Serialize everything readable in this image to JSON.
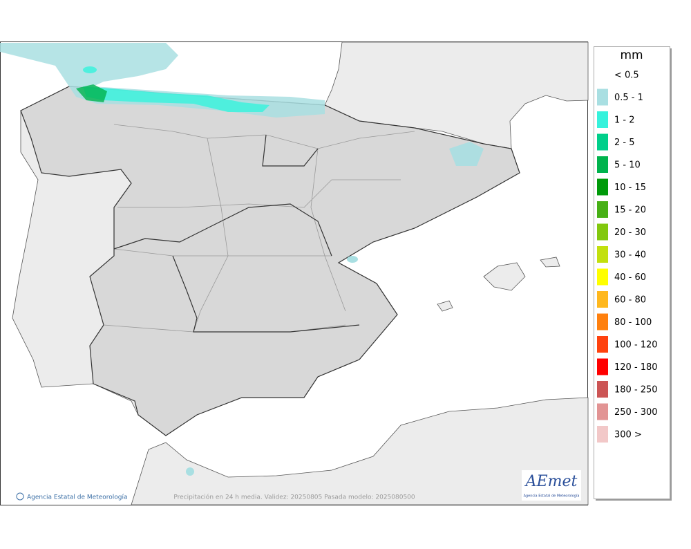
{
  "legend": {
    "title": "mm",
    "items": [
      {
        "label": "< 0.5"
      },
      {
        "label": "0.5 - 1",
        "color": "#a9dfe2"
      },
      {
        "label": "1 - 2",
        "color": "#36f2dc"
      },
      {
        "label": "2 - 5",
        "color": "#00cf8a"
      },
      {
        "label": "5 - 10",
        "color": "#00b34d"
      },
      {
        "label": "10 - 15",
        "color": "#009a0a"
      },
      {
        "label": "15 - 20",
        "color": "#47b016"
      },
      {
        "label": "20 - 30",
        "color": "#82c80e"
      },
      {
        "label": "30 - 40",
        "color": "#c2e00e"
      },
      {
        "label": "40 - 60",
        "color": "#ffff00"
      },
      {
        "label": "60 - 80",
        "color": "#ffb81e"
      },
      {
        "label": "80 - 100",
        "color": "#ff800e"
      },
      {
        "label": "100 - 120",
        "color": "#ff420e"
      },
      {
        "label": "120 - 180",
        "color": "#ff0000"
      },
      {
        "label": "180 - 250",
        "color": "#cc5555"
      },
      {
        "label": "250 - 300",
        "color": "#e29494"
      },
      {
        "label": "300 >",
        "color": "#f2c8c8"
      }
    ]
  },
  "footer": {
    "agency": "Agencia Estatal de Meteorología",
    "caption": "Precipitación en 24 h media. Validez: 20250805 Pasada modelo: 2025080500"
  },
  "logo": {
    "text": "AEmet",
    "subtitle": "Agencia Estatal de Meteorología"
  }
}
